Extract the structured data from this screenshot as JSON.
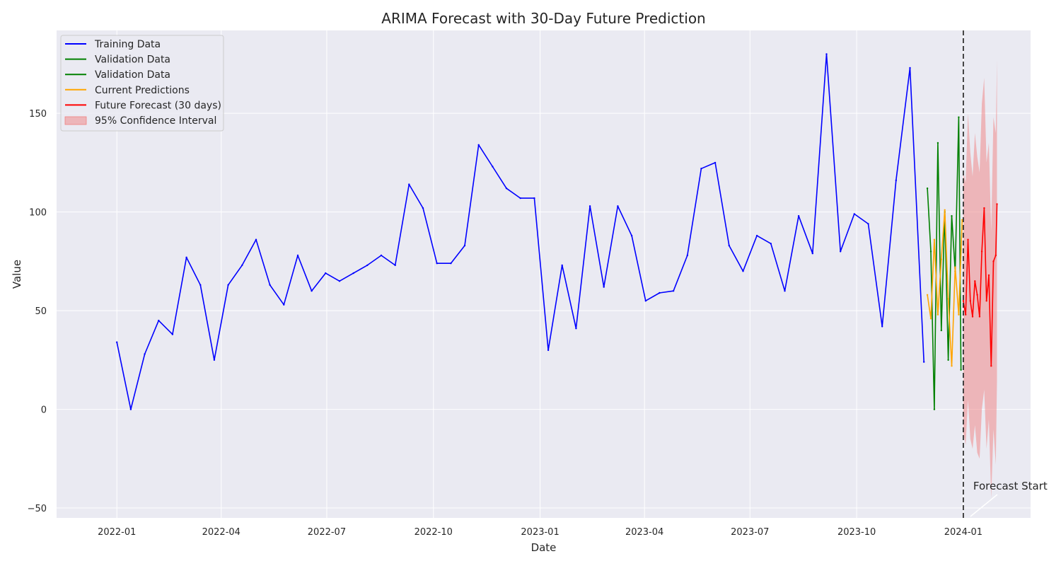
{
  "chart_data": {
    "type": "line",
    "title": "ARIMA Forecast with 30-Day Future Prediction",
    "xlabel": "Date",
    "ylabel": "Value",
    "xlim": [
      "2021-11-10",
      "2024-02-28"
    ],
    "ylim": [
      -55,
      192
    ],
    "x_ticks": [
      "2022-01",
      "2022-04",
      "2022-07",
      "2022-10",
      "2023-01",
      "2023-04",
      "2023-07",
      "2023-10",
      "2024-01"
    ],
    "y_ticks": [
      -50,
      0,
      50,
      100,
      150
    ],
    "grid": true,
    "legend_position": "top-left",
    "colors": {
      "background": "#eaeaf2",
      "grid": "#ffffff",
      "training": "#0000ff",
      "validation": "#008000",
      "current_pred": "#ffa500",
      "future": "#ff0000",
      "ci_fill": "#f08080",
      "forecast_line": "#333333"
    },
    "legend": [
      "Training Data",
      "Validation Data",
      "Validation Data",
      "Current Predictions",
      "Future Forecast (30 days)",
      "95% Confidence Interval"
    ],
    "series": [
      {
        "name": "Training Data",
        "x": [
          "2022-01-01",
          "2022-01-13",
          "2022-01-25",
          "2022-02-06",
          "2022-02-18",
          "2022-03-02",
          "2022-03-14",
          "2022-03-26",
          "2022-04-07",
          "2022-04-19",
          "2022-05-01",
          "2022-05-13",
          "2022-05-25",
          "2022-06-06",
          "2022-06-18",
          "2022-06-30",
          "2022-07-12",
          "2022-07-24",
          "2022-08-05",
          "2022-08-17",
          "2022-08-29",
          "2022-09-10",
          "2022-09-22",
          "2022-10-04",
          "2022-10-16",
          "2022-10-28",
          "2022-11-09",
          "2022-11-21",
          "2022-12-03",
          "2022-12-15",
          "2022-12-27",
          "2023-01-08",
          "2023-01-20",
          "2023-02-01",
          "2023-02-13",
          "2023-02-25",
          "2023-03-09",
          "2023-03-21",
          "2023-04-02",
          "2023-04-14",
          "2023-04-26",
          "2023-05-08",
          "2023-05-20",
          "2023-06-01",
          "2023-06-13",
          "2023-06-25",
          "2023-07-07",
          "2023-07-19",
          "2023-07-31",
          "2023-08-12",
          "2023-08-24",
          "2023-09-05",
          "2023-09-17",
          "2023-09-29",
          "2023-10-11",
          "2023-10-23",
          "2023-11-04",
          "2023-11-16",
          "2023-11-28"
        ],
        "values": [
          34,
          0,
          28,
          45,
          38,
          77,
          63,
          25,
          63,
          73,
          86,
          63,
          53,
          78,
          60,
          69,
          65,
          69,
          73,
          78,
          73,
          114,
          102,
          74,
          74,
          83,
          134,
          123,
          112,
          107,
          107,
          30,
          73,
          41,
          103,
          62,
          103,
          88,
          55,
          59,
          60,
          78,
          122,
          125,
          83,
          70,
          88,
          84,
          60,
          98,
          79,
          180,
          80,
          99,
          94,
          42,
          116,
          173,
          24
        ]
      },
      {
        "name": "Validation Data",
        "x": [
          "2023-12-01",
          "2023-12-04",
          "2023-12-07",
          "2023-12-10",
          "2023-12-13",
          "2023-12-16",
          "2023-12-19",
          "2023-12-22",
          "2023-12-25",
          "2023-12-28",
          "2023-12-30"
        ],
        "values": [
          112,
          80,
          0,
          135,
          40,
          100,
          25,
          98,
          70,
          148,
          20
        ]
      },
      {
        "name": "Current Predictions",
        "x": [
          "2023-12-01",
          "2023-12-04",
          "2023-12-07",
          "2023-12-10",
          "2023-12-13",
          "2023-12-16",
          "2023-12-19",
          "2023-12-22",
          "2023-12-25",
          "2023-12-28",
          "2023-12-31"
        ],
        "values": [
          58,
          46,
          86,
          48,
          76,
          101,
          56,
          22,
          72,
          48,
          96
        ]
      },
      {
        "name": "Future Forecast (30 days)",
        "x": [
          "2024-01-01",
          "2024-01-03",
          "2024-01-05",
          "2024-01-07",
          "2024-01-09",
          "2024-01-11",
          "2024-01-13",
          "2024-01-15",
          "2024-01-17",
          "2024-01-19",
          "2024-01-21",
          "2024-01-23",
          "2024-01-25",
          "2024-01-27",
          "2024-01-29",
          "2024-01-30"
        ],
        "values": [
          55,
          48,
          86,
          55,
          47,
          65,
          58,
          47,
          80,
          102,
          55,
          68,
          22,
          75,
          78,
          104
        ]
      },
      {
        "name": "95% Confidence Interval",
        "x": [
          "2024-01-01",
          "2024-01-03",
          "2024-01-05",
          "2024-01-07",
          "2024-01-09",
          "2024-01-11",
          "2024-01-13",
          "2024-01-15",
          "2024-01-17",
          "2024-01-19",
          "2024-01-21",
          "2024-01-23",
          "2024-01-25",
          "2024-01-27",
          "2024-01-29",
          "2024-01-30"
        ],
        "lower": [
          -12,
          -18,
          5,
          -15,
          -20,
          -8,
          -22,
          -25,
          0,
          10,
          -20,
          -5,
          -45,
          -10,
          -28,
          15
        ],
        "upper": [
          120,
          115,
          150,
          130,
          118,
          140,
          128,
          120,
          155,
          168,
          125,
          135,
          90,
          148,
          140,
          177
        ]
      }
    ],
    "vline": {
      "x": "2024-01-01",
      "style": "dashed"
    },
    "annotation": {
      "text": "Forecast Start",
      "x": "2024-01-01",
      "y": -55
    }
  }
}
